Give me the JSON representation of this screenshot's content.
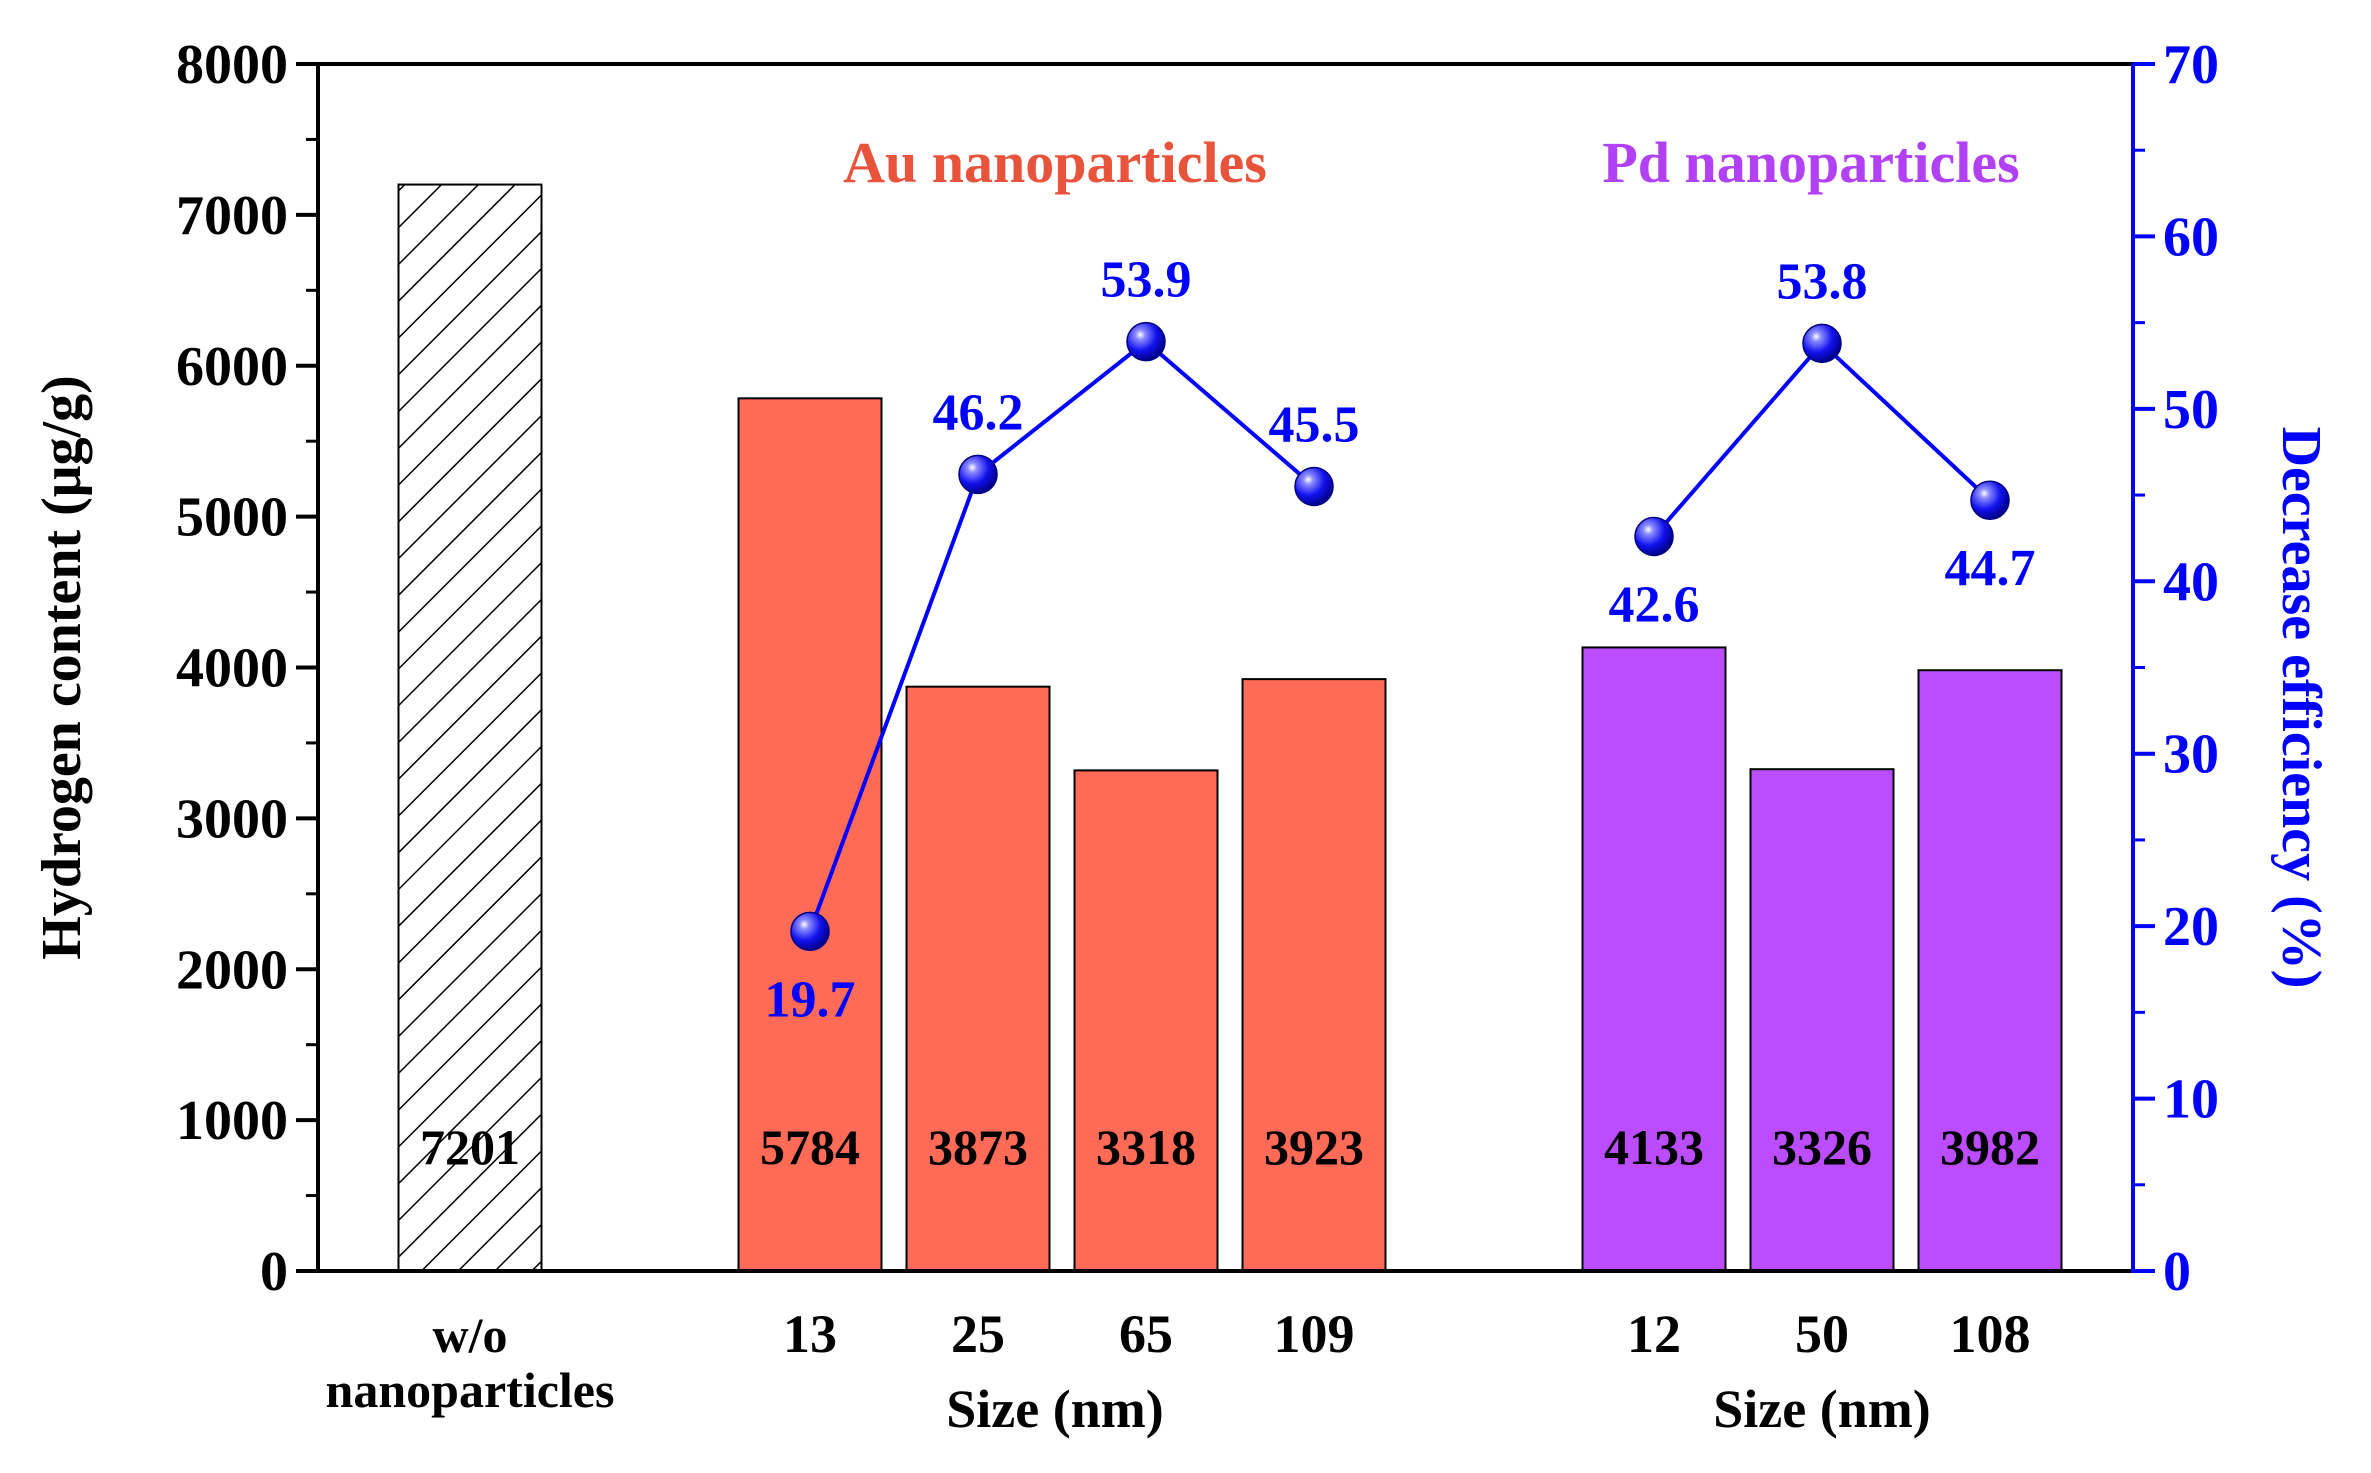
{
  "chart_data": {
    "type": "bar",
    "dual_axis": true,
    "left_axis": {
      "label": "Hydrogen content (μg/g)",
      "ylim": [
        0,
        8000
      ],
      "major_ticks": [
        0,
        1000,
        2000,
        3000,
        4000,
        5000,
        6000,
        7000,
        8000
      ],
      "color": "#000000"
    },
    "right_axis": {
      "label": "Decrease efficiency (%)",
      "ylim": [
        0,
        70
      ],
      "major_ticks": [
        0,
        10,
        20,
        30,
        40,
        50,
        60,
        70
      ],
      "color": "#0000ff"
    },
    "bars": [
      {
        "category": "w/o nanoparticles",
        "label_lines": [
          "w/o",
          "nanoparticles"
        ],
        "value": 7201,
        "label": "7201",
        "group": "control",
        "color": "hatched"
      },
      {
        "category": "13",
        "value": 5784,
        "label": "5784",
        "group": "Au",
        "color": "#ff6b57"
      },
      {
        "category": "25",
        "value": 3873,
        "label": "3873",
        "group": "Au",
        "color": "#ff6b57"
      },
      {
        "category": "65",
        "value": 3318,
        "label": "3318",
        "group": "Au",
        "color": "#ff6b57"
      },
      {
        "category": "109",
        "value": 3923,
        "label": "3923",
        "group": "Au",
        "color": "#ff6b57"
      },
      {
        "category": "12",
        "value": 4133,
        "label": "4133",
        "group": "Pd",
        "color": "#bb4dff"
      },
      {
        "category": "50",
        "value": 3326,
        "label": "3326",
        "group": "Pd",
        "color": "#bb4dff"
      },
      {
        "category": "108",
        "value": 3982,
        "label": "3982",
        "group": "Pd",
        "color": "#bb4dff"
      }
    ],
    "efficiency_series": [
      {
        "name": "Au decrease efficiency",
        "color": "#0000ff",
        "categories": [
          "13",
          "25",
          "65",
          "109"
        ],
        "values": [
          19.7,
          46.2,
          53.9,
          45.5
        ],
        "labels": [
          "19.7",
          "46.2",
          "53.9",
          "45.5"
        ]
      },
      {
        "name": "Pd decrease efficiency",
        "color": "#0000ff",
        "categories": [
          "12",
          "50",
          "108"
        ],
        "values": [
          42.6,
          53.8,
          44.7
        ],
        "labels": [
          "42.6",
          "53.8",
          "44.7"
        ]
      }
    ],
    "group_titles": [
      {
        "text": "Au nanoparticles",
        "color": "#e8533b"
      },
      {
        "text": "Pd nanoparticles",
        "color": "#b240f5"
      }
    ],
    "xlabels": [
      "Size (nm)",
      "Size (nm)"
    ]
  }
}
